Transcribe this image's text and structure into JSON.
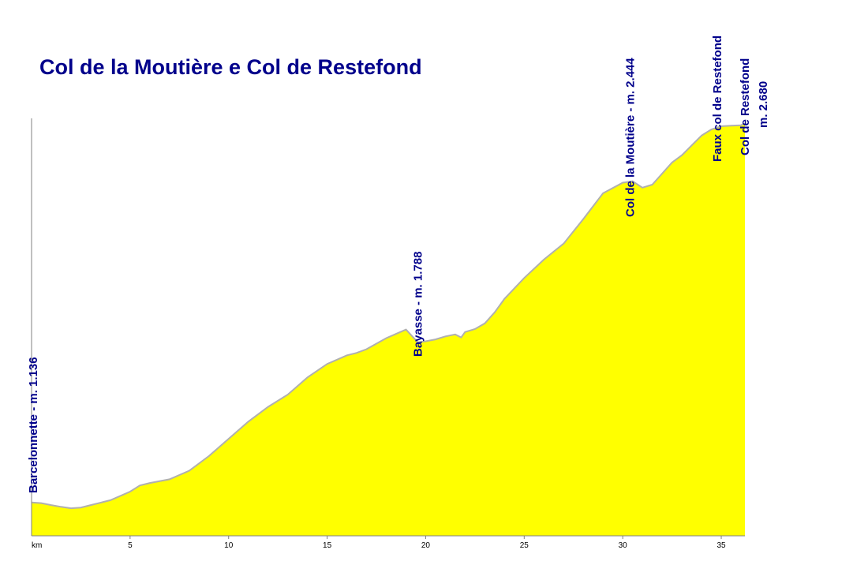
{
  "chart_data": {
    "type": "area",
    "title": "Col de la Moutière e Col de Restefond",
    "xlabel": "km",
    "ylabel": "",
    "x_ticks": [
      5,
      10,
      15,
      20,
      25,
      30,
      35
    ],
    "xlim": [
      0,
      36.2
    ],
    "ylim": [
      1000,
      2700
    ],
    "fill_color": "#ffff00",
    "line_color": "#b0b0b0",
    "label_color": "#00008b",
    "grid": false,
    "series": [
      {
        "x": [
          0,
          0.5,
          1,
          1.5,
          2,
          2.5,
          3,
          4,
          5,
          5.5,
          6,
          7,
          8,
          9,
          10,
          11,
          12,
          13,
          14,
          15,
          16,
          16.5,
          17,
          18,
          19,
          19.6,
          20,
          20.5,
          21,
          21.5,
          21.8,
          22,
          22.5,
          23,
          23.5,
          24,
          25,
          26,
          27,
          28,
          29,
          30,
          30.5,
          31,
          31.5,
          32,
          32.5,
          33,
          33.5,
          34,
          34.5,
          35,
          35.5,
          36,
          36.2
        ],
        "y": [
          1136,
          1133,
          1125,
          1118,
          1112,
          1115,
          1125,
          1145,
          1180,
          1205,
          1215,
          1230,
          1265,
          1325,
          1395,
          1465,
          1525,
          1575,
          1645,
          1700,
          1735,
          1745,
          1760,
          1805,
          1840,
          1788,
          1792,
          1800,
          1812,
          1820,
          1808,
          1830,
          1842,
          1865,
          1910,
          1965,
          2050,
          2125,
          2190,
          2290,
          2395,
          2438,
          2444,
          2418,
          2430,
          2475,
          2520,
          2550,
          2590,
          2630,
          2655,
          2668,
          2670,
          2672,
          2680
        ]
      }
    ],
    "annotations": [
      {
        "label": "Barcelonnette - m. 1.136",
        "x": 0
      },
      {
        "label": "Bayasse - m. 1.788",
        "x": 19.6
      },
      {
        "label": "Col de la Moutière - m. 2.444",
        "x": 30.5
      },
      {
        "label": "Faux col de Restefond",
        "x": 35
      },
      {
        "label": "Col de Restefond",
        "x": 36.2
      },
      {
        "label": "m. 2.680",
        "x": 36.2
      }
    ]
  }
}
